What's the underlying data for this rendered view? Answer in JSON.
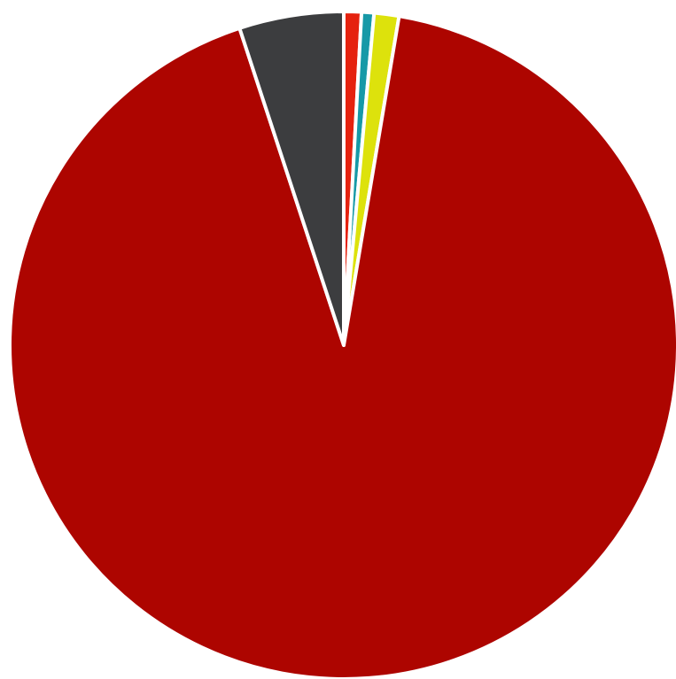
{
  "chart_data": {
    "type": "pie",
    "title": "",
    "start_angle_deg": 0,
    "direction": "clockwise",
    "slices": [
      {
        "value": 0.85,
        "color": "#e5220f"
      },
      {
        "value": 0.6,
        "color": "#1699a7"
      },
      {
        "value": 1.2,
        "color": "#dde20c"
      },
      {
        "value": 92.3,
        "color": "#ad0500"
      },
      {
        "value": 5.05,
        "color": "#3c3d3f"
      }
    ]
  }
}
